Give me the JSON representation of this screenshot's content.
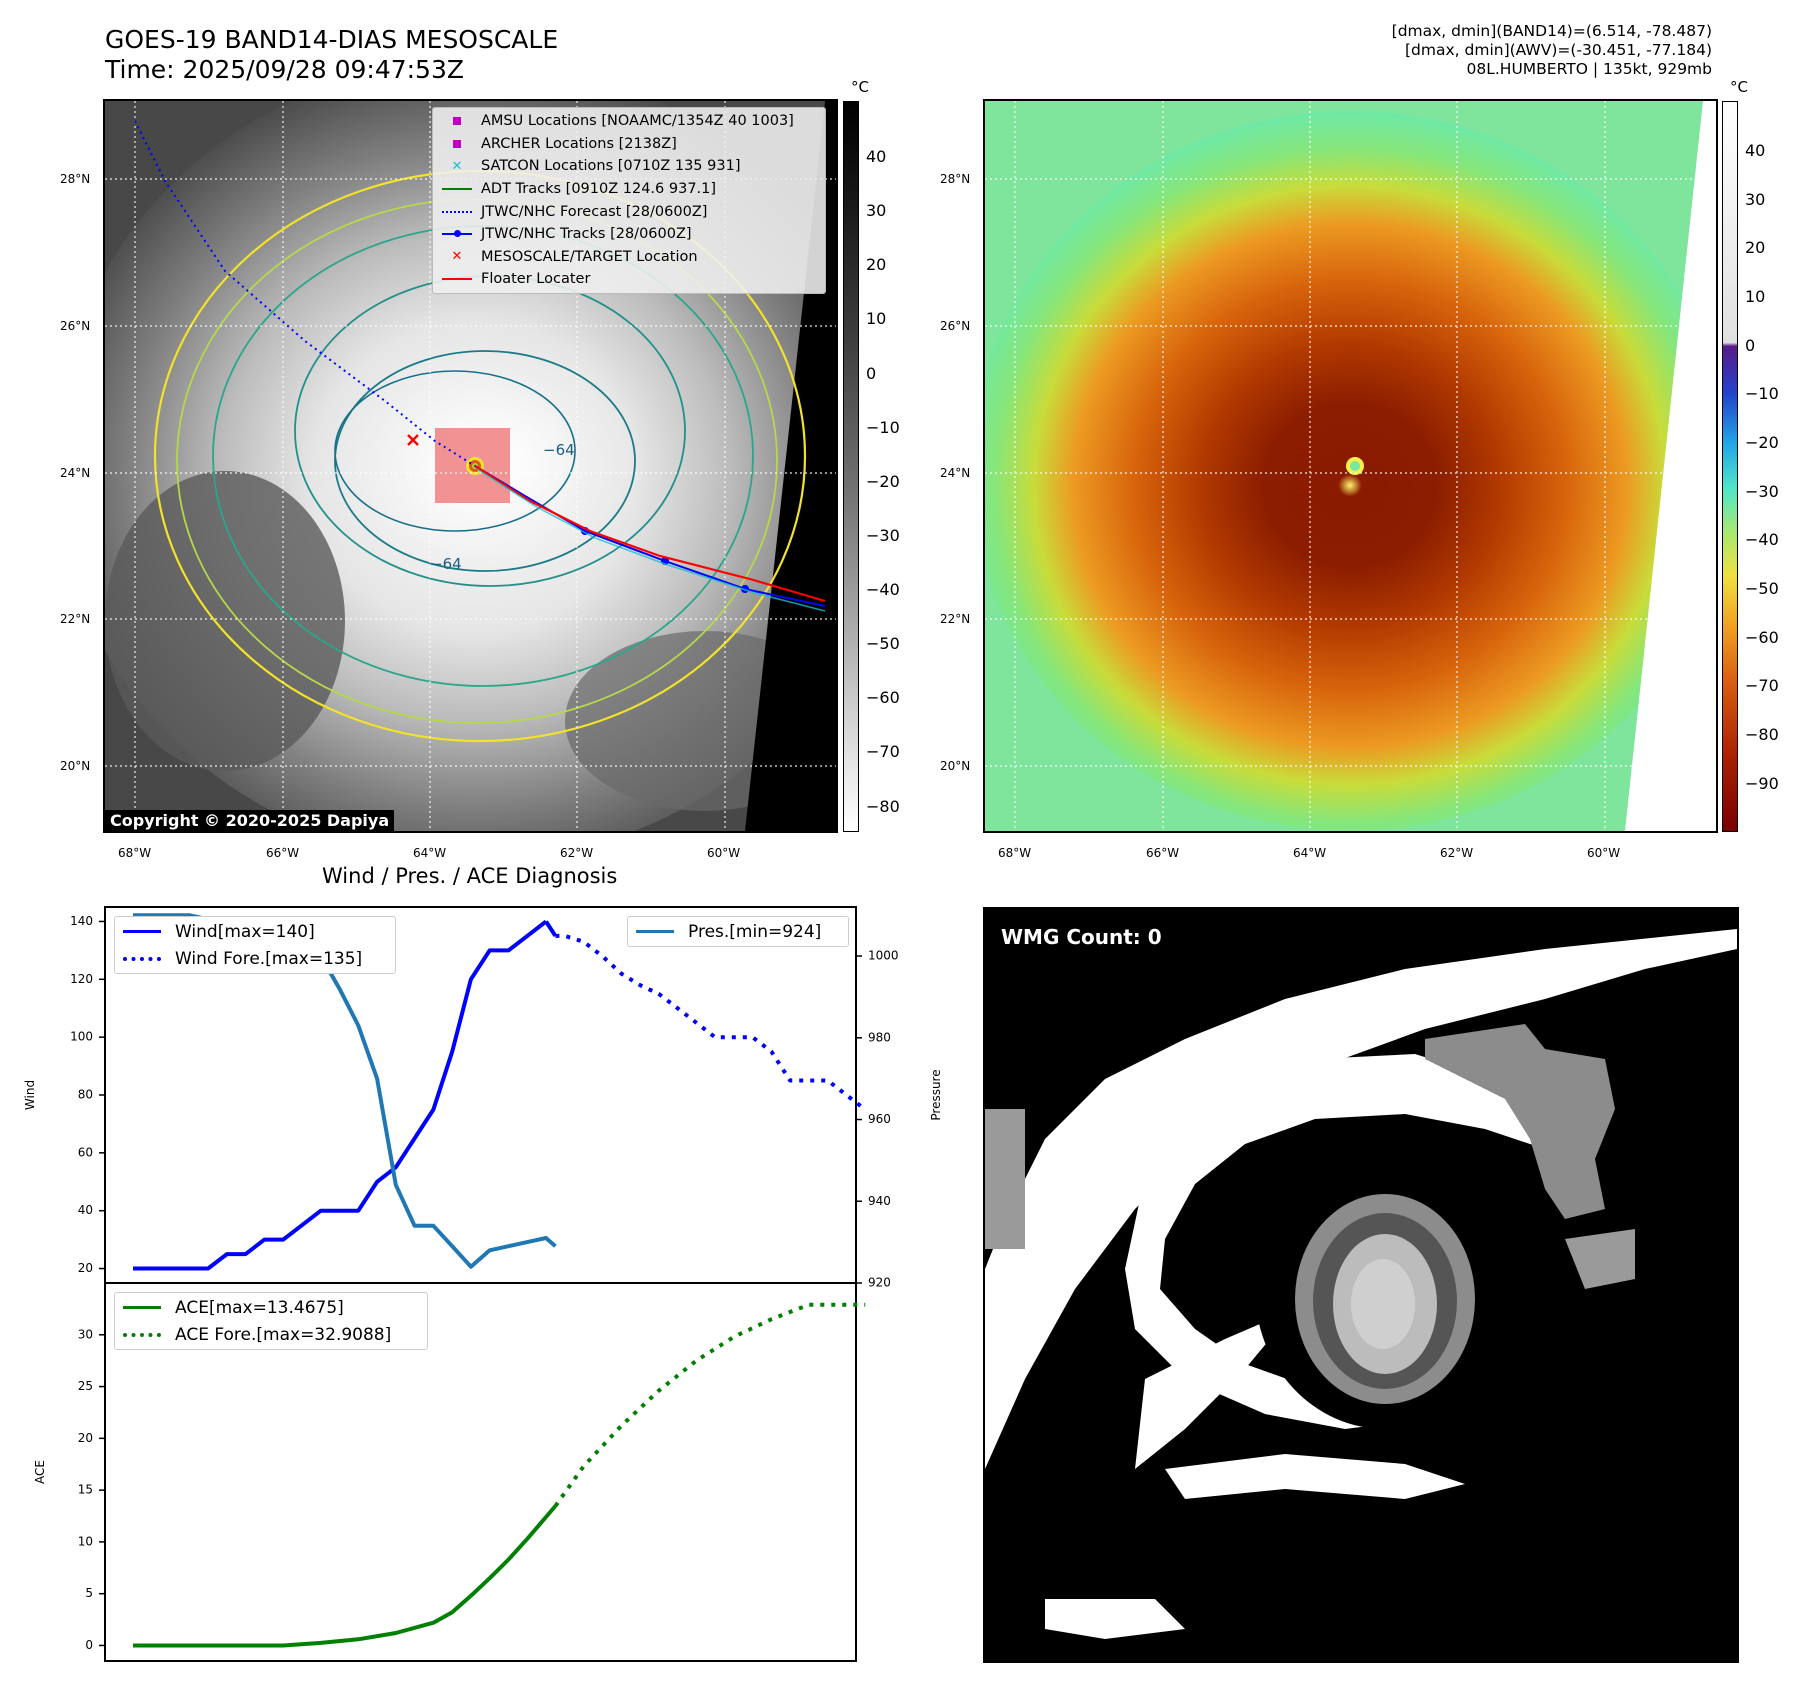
{
  "header": {
    "title_line1": "GOES-19 BAND14-DIAS MESOSCALE",
    "title_line2": "Time: 2025/09/28 09:47:53Z",
    "info_line1": "[dmax, dmin](BAND14)=(6.514, -78.487)",
    "info_line2": "[dmax, dmin](AWV)=(-30.451, -77.184)",
    "info_line3": "08L.HUMBERTO | 135kt, 929mb"
  },
  "ir_map": {
    "lat_ticks": [
      "28°N",
      "26°N",
      "24°N",
      "22°N",
      "20°N"
    ],
    "lon_ticks": [
      "68°W",
      "66°W",
      "64°W",
      "62°W",
      "60°W"
    ],
    "contour_label": "−64",
    "copyright": "Copyright © 2020-2025 Dapiya",
    "colorbar_unit": "°C",
    "colorbar_ticks": [
      "40",
      "30",
      "20",
      "10",
      "0",
      "−10",
      "−20",
      "−30",
      "−40",
      "−50",
      "−60",
      "−70",
      "−80"
    ],
    "legend": [
      {
        "label": "AMSU Locations [NOAAMC/1354Z 40 1003]",
        "symbol": "square",
        "color": "#c000c0"
      },
      {
        "label": "ARCHER Locations [2138Z]",
        "symbol": "square",
        "color": "#c000c0"
      },
      {
        "label": "SATCON Locations [0710Z 135 931]",
        "symbol": "x",
        "color": "#17becf"
      },
      {
        "label": "ADT Tracks [0910Z 124.6 937.1]",
        "symbol": "line",
        "color": "#008000"
      },
      {
        "label": "JTWC/NHC Forecast [28/0600Z]",
        "symbol": "dotted",
        "color": "#0000ff"
      },
      {
        "label": "JTWC/NHC Tracks [28/0600Z]",
        "symbol": "line-dot",
        "color": "#0000ff"
      },
      {
        "label": "MESOSCALE/TARGET Location",
        "symbol": "x",
        "color": "#ff0000"
      },
      {
        "label": "Floater Locater",
        "symbol": "line",
        "color": "#ff0000"
      }
    ]
  },
  "color_map": {
    "lat_ticks": [
      "28°N",
      "26°N",
      "24°N",
      "22°N",
      "20°N"
    ],
    "lon_ticks": [
      "68°W",
      "66°W",
      "64°W",
      "62°W",
      "60°W"
    ],
    "colorbar_unit": "°C",
    "colorbar_ticks": [
      "40",
      "30",
      "20",
      "10",
      "0",
      "−10",
      "−20",
      "−30",
      "−40",
      "−50",
      "−60",
      "−70",
      "−80",
      "−90"
    ]
  },
  "wmg": {
    "label": "WMG Count: 0"
  },
  "chart_data": [
    {
      "type": "line",
      "title": "Wind / Pres. / ACE Diagnosis",
      "ylabel": "Wind",
      "ylabel_right": "Pressure",
      "ylim": [
        15,
        145
      ],
      "ylim_right": [
        920,
        1012
      ],
      "yticks": [
        20,
        40,
        60,
        80,
        100,
        120,
        140
      ],
      "yticks_right": [
        920,
        940,
        960,
        980,
        1000
      ],
      "legend_left": [
        "Wind[max=140]",
        "Wind Fore.[max=135]"
      ],
      "legend_right": [
        "Pres.[min=924]"
      ],
      "series": [
        {
          "name": "Wind[max=140]",
          "axis": "left",
          "style": "solid",
          "color": "#0000ff",
          "x": [
            0,
            4,
            5,
            6,
            7,
            8,
            9,
            10,
            11,
            12,
            13,
            14,
            15,
            16,
            17,
            18,
            19,
            20,
            21,
            22
          ],
          "values": [
            20,
            20,
            25,
            25,
            30,
            30,
            35,
            40,
            40,
            40,
            50,
            55,
            65,
            75,
            95,
            120,
            130,
            130,
            135,
            140
          ]
        },
        {
          "name": "Wind[max=140]",
          "axis": "left",
          "style": "solid",
          "color": "#0000ff",
          "x": [
            22,
            22.5
          ],
          "values": [
            140,
            135
          ]
        },
        {
          "name": "Wind Fore.[max=135]",
          "axis": "left",
          "style": "dotted",
          "color": "#0000ff",
          "x": [
            22.5,
            23,
            24,
            25,
            26,
            27,
            28,
            29,
            30,
            31,
            32,
            33,
            34,
            35,
            36,
            37,
            38,
            39
          ],
          "values": [
            135,
            135,
            133,
            128,
            122,
            118,
            115,
            110,
            105,
            100,
            100,
            100,
            95,
            85,
            85,
            85,
            80,
            75
          ]
        },
        {
          "name": "Pres.[min=924]",
          "axis": "right",
          "style": "solid",
          "color": "#1f77b4",
          "x": [
            0,
            2,
            3,
            4,
            5,
            6,
            7,
            8,
            9,
            10,
            11,
            12,
            13,
            14,
            15,
            16,
            17,
            18,
            19,
            20,
            21,
            22,
            22.5
          ],
          "values": [
            1010,
            1010,
            1010,
            1009,
            1009,
            1009,
            1008,
            1006,
            1003,
            1000,
            992,
            983,
            970,
            944,
            934,
            934,
            929,
            924,
            928,
            929,
            930,
            931,
            929
          ]
        }
      ]
    },
    {
      "type": "line",
      "ylabel": "ACE",
      "ylim": [
        -1.5,
        35
      ],
      "yticks": [
        0,
        5,
        10,
        15,
        20,
        25,
        30
      ],
      "legend": [
        "ACE[max=13.4675]",
        "ACE Fore.[max=32.9088]"
      ],
      "series": [
        {
          "name": "ACE[max=13.4675]",
          "style": "solid",
          "color": "#008000",
          "x": [
            0,
            4,
            8,
            10,
            12,
            14,
            16,
            17,
            18,
            19,
            20,
            21,
            22,
            22.5
          ],
          "values": [
            0,
            0,
            0,
            0.25,
            0.6,
            1.2,
            2.2,
            3.2,
            4.8,
            6.5,
            8.3,
            10.3,
            12.4,
            13.4675
          ]
        },
        {
          "name": "ACE Fore.[max=32.9088]",
          "style": "dotted",
          "color": "#008000",
          "x": [
            22.5,
            24,
            26,
            28,
            30,
            32,
            34,
            36,
            38,
            39
          ],
          "values": [
            13.4675,
            17.3,
            21.2,
            24.6,
            27.5,
            29.8,
            31.5,
            32.9,
            32.9,
            32.9088
          ]
        }
      ]
    }
  ]
}
